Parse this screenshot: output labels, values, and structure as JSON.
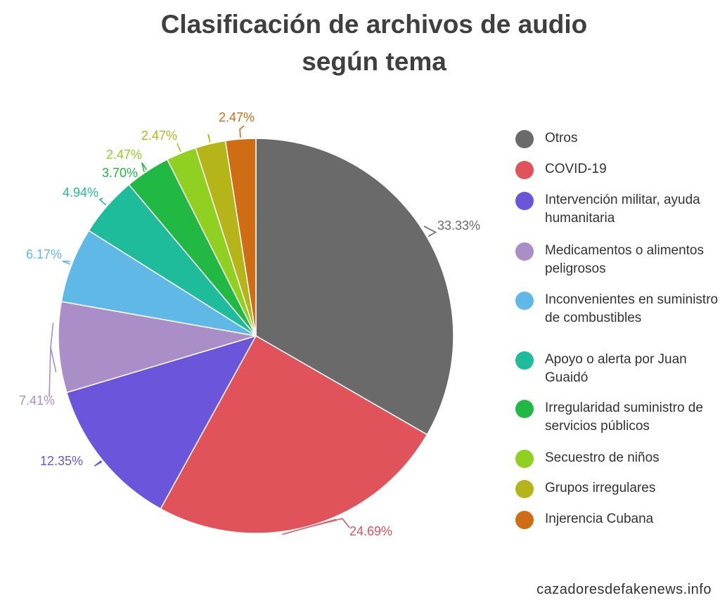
{
  "title": "Clasificación de archivos de audio según tema",
  "title_lines": [
    "Clasificación de archivos de audio",
    "según tema"
  ],
  "source": "cazadoresdefakenews.info",
  "chart_data": {
    "type": "pie",
    "title": "Clasificación de archivos de audio según tema",
    "legend_position": "right",
    "start_angle_deg": 0,
    "direction": "clockwise",
    "slices": [
      {
        "label": "Otros",
        "value": 33.33,
        "display": "33.33%",
        "color": "#6a6a6a"
      },
      {
        "label": "COVID-19",
        "value": 24.69,
        "display": "24.69%",
        "color": "#e0535a"
      },
      {
        "label": "Intervención militar, ayuda humanitaria",
        "value": 12.35,
        "display": "12.35%",
        "color": "#6b55da"
      },
      {
        "label": "Medicamentos o alimentos peligrosos",
        "value": 7.41,
        "display": "7.41%",
        "color": "#a98ec8"
      },
      {
        "label": "Inconvenientes en suministro de combustibles",
        "value": 6.17,
        "display": "6.17%",
        "color": "#5fb8e6"
      },
      {
        "label": "Apoyo o alerta por Juan Guaidó",
        "value": 4.94,
        "display": "4.94%",
        "color": "#1fbc9b"
      },
      {
        "label": "Irregularidad suministro de servicios públicos",
        "value": 3.7,
        "display": "3.70%",
        "color": "#22b844"
      },
      {
        "label": "Secuestro de niños",
        "value": 2.47,
        "display": "2.47%",
        "color": "#8fd020"
      },
      {
        "label": "Grupos irregulares",
        "value": 2.47,
        "display": "2.47%",
        "color": "#b5b419"
      },
      {
        "label": "Injerencia Cubana",
        "value": 2.47,
        "display": "2.47%",
        "color": "#cf6d14"
      }
    ]
  }
}
